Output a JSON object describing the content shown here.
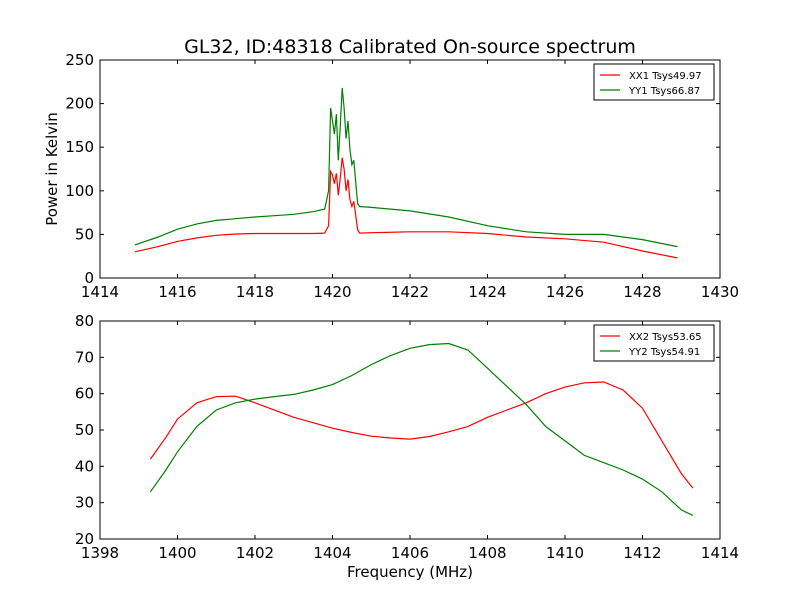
{
  "title": "GL32, ID:48318 Calibrated On-source spectrum",
  "chart_data": [
    {
      "type": "line",
      "xlabel": "",
      "ylabel": "Power in Kelvin",
      "xlim": [
        1414,
        1430
      ],
      "ylim": [
        0,
        250
      ],
      "xticks": [
        "1414",
        "1416",
        "1418",
        "1420",
        "1422",
        "1424",
        "1426",
        "1428",
        "1430"
      ],
      "yticks": [
        "0",
        "50",
        "100",
        "150",
        "200",
        "250"
      ],
      "grid": false,
      "legend_position": "top-right",
      "series": [
        {
          "name": "XX1 Tsys49.97",
          "color": "#ff0000",
          "points": [
            [
              1414.9,
              30
            ],
            [
              1415.5,
              36
            ],
            [
              1416,
              42
            ],
            [
              1416.5,
              46
            ],
            [
              1417,
              49
            ],
            [
              1417.5,
              50.5
            ],
            [
              1418,
              51
            ],
            [
              1418.5,
              51
            ],
            [
              1419,
              51
            ],
            [
              1419.5,
              51
            ],
            [
              1419.8,
              51.5
            ],
            [
              1419.9,
              60
            ],
            [
              1419.95,
              122
            ],
            [
              1420.0,
              118
            ],
            [
              1420.05,
              108
            ],
            [
              1420.1,
              120
            ],
            [
              1420.15,
              95
            ],
            [
              1420.2,
              115
            ],
            [
              1420.25,
              138
            ],
            [
              1420.3,
              125
            ],
            [
              1420.35,
              100
            ],
            [
              1420.4,
              113
            ],
            [
              1420.45,
              90
            ],
            [
              1420.5,
              82
            ],
            [
              1420.55,
              88
            ],
            [
              1420.6,
              72
            ],
            [
              1420.65,
              55
            ],
            [
              1420.7,
              51.5
            ],
            [
              1421,
              52
            ],
            [
              1422,
              53
            ],
            [
              1423,
              53
            ],
            [
              1424,
              51
            ],
            [
              1425,
              47
            ],
            [
              1426,
              45
            ],
            [
              1427,
              41
            ],
            [
              1428,
              31
            ],
            [
              1428.9,
              23
            ]
          ]
        },
        {
          "name": "YY1 Tsys66.87",
          "color": "#008000",
          "points": [
            [
              1414.9,
              38
            ],
            [
              1415.5,
              47
            ],
            [
              1416,
              56
            ],
            [
              1416.5,
              62
            ],
            [
              1417,
              66
            ],
            [
              1417.5,
              68
            ],
            [
              1418,
              70
            ],
            [
              1418.5,
              71.5
            ],
            [
              1419,
              73
            ],
            [
              1419.5,
              76
            ],
            [
              1419.8,
              79
            ],
            [
              1419.9,
              100
            ],
            [
              1419.95,
              195
            ],
            [
              1420.0,
              180
            ],
            [
              1420.05,
              165
            ],
            [
              1420.1,
              188
            ],
            [
              1420.15,
              135
            ],
            [
              1420.2,
              175
            ],
            [
              1420.25,
              218
            ],
            [
              1420.3,
              195
            ],
            [
              1420.35,
              160
            ],
            [
              1420.4,
              180
            ],
            [
              1420.45,
              148
            ],
            [
              1420.5,
              130
            ],
            [
              1420.55,
              135
            ],
            [
              1420.6,
              110
            ],
            [
              1420.65,
              85
            ],
            [
              1420.7,
              82
            ],
            [
              1421,
              81
            ],
            [
              1422,
              77
            ],
            [
              1423,
              70
            ],
            [
              1424,
              60
            ],
            [
              1425,
              53
            ],
            [
              1426,
              50
            ],
            [
              1427,
              50
            ],
            [
              1428,
              44
            ],
            [
              1428.9,
              36
            ]
          ]
        }
      ]
    },
    {
      "type": "line",
      "xlabel": "Frequency (MHz)",
      "ylabel": "",
      "xlim": [
        1398,
        1414
      ],
      "ylim": [
        20,
        80
      ],
      "xticks": [
        "1398",
        "1400",
        "1402",
        "1404",
        "1406",
        "1408",
        "1410",
        "1412",
        "1414"
      ],
      "yticks": [
        "20",
        "30",
        "40",
        "50",
        "60",
        "70",
        "80"
      ],
      "grid": false,
      "legend_position": "top-right",
      "series": [
        {
          "name": "XX2 Tsys53.65",
          "color": "#ff0000",
          "points": [
            [
              1399.3,
              42
            ],
            [
              1399.7,
              48
            ],
            [
              1400,
              53
            ],
            [
              1400.5,
              57.5
            ],
            [
              1401,
              59.2
            ],
            [
              1401.5,
              59.3
            ],
            [
              1402,
              57.5
            ],
            [
              1402.5,
              55.5
            ],
            [
              1403,
              53.5
            ],
            [
              1403.5,
              52
            ],
            [
              1404,
              50.5
            ],
            [
              1404.5,
              49.3
            ],
            [
              1405,
              48.3
            ],
            [
              1405.5,
              47.8
            ],
            [
              1406,
              47.5
            ],
            [
              1406.5,
              48.2
            ],
            [
              1407,
              49.5
            ],
            [
              1407.5,
              51
            ],
            [
              1408,
              53.5
            ],
            [
              1408.5,
              55.5
            ],
            [
              1409,
              57.5
            ],
            [
              1409.5,
              60
            ],
            [
              1410,
              61.8
            ],
            [
              1410.5,
              63
            ],
            [
              1411,
              63.2
            ],
            [
              1411.5,
              61
            ],
            [
              1412,
              56
            ],
            [
              1412.5,
              47
            ],
            [
              1413,
              38
            ],
            [
              1413.3,
              34
            ]
          ]
        },
        {
          "name": "YY2 Tsys54.91",
          "color": "#008000",
          "points": [
            [
              1399.3,
              33
            ],
            [
              1399.7,
              39
            ],
            [
              1400,
              44
            ],
            [
              1400.5,
              51
            ],
            [
              1401,
              55.5
            ],
            [
              1401.5,
              57.5
            ],
            [
              1402,
              58.5
            ],
            [
              1402.5,
              59.2
            ],
            [
              1403,
              59.8
            ],
            [
              1403.5,
              61
            ],
            [
              1404,
              62.5
            ],
            [
              1404.5,
              65
            ],
            [
              1405,
              68
            ],
            [
              1405.5,
              70.5
            ],
            [
              1406,
              72.5
            ],
            [
              1406.5,
              73.5
            ],
            [
              1407,
              73.8
            ],
            [
              1407.5,
              72
            ],
            [
              1408,
              67
            ],
            [
              1408.5,
              62
            ],
            [
              1409,
              57
            ],
            [
              1409.5,
              51
            ],
            [
              1410,
              47
            ],
            [
              1410.5,
              43
            ],
            [
              1411,
              41
            ],
            [
              1411.5,
              39
            ],
            [
              1412,
              36.5
            ],
            [
              1412.5,
              33
            ],
            [
              1413,
              28
            ],
            [
              1413.3,
              26.5
            ]
          ]
        }
      ]
    }
  ]
}
